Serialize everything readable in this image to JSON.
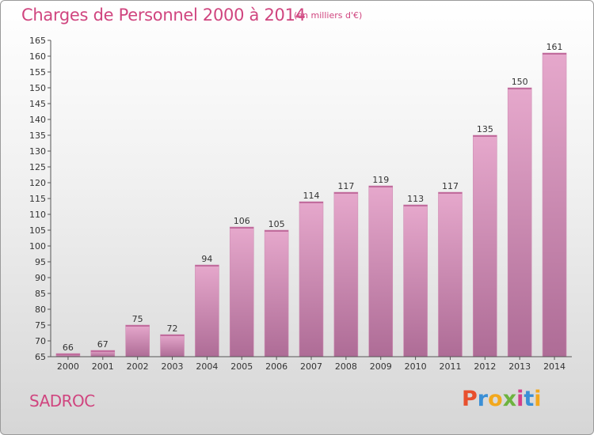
{
  "header": {
    "title": "Charges de Personnel 2000 à 2014",
    "subtitle": "(en milliers d'€)"
  },
  "footer": {
    "commune": "SADROC",
    "logo_text": "Proxiti"
  },
  "colors": {
    "title": "#d0457f",
    "bar_top": "#e6a8cc",
    "bar_bottom": "#ae6c96",
    "logo_letters": [
      "#e8502e",
      "#3a8fd6",
      "#f2a81d",
      "#6db33f",
      "#d33f8a",
      "#3a8fd6",
      "#f2a81d"
    ]
  },
  "chart_data": {
    "type": "bar",
    "title": "Charges de Personnel 2000 à 2014",
    "subtitle": "(en milliers d'€)",
    "categories": [
      "2000",
      "2001",
      "2002",
      "2003",
      "2004",
      "2005",
      "2006",
      "2007",
      "2008",
      "2009",
      "2010",
      "2011",
      "2012",
      "2013",
      "2014"
    ],
    "values": [
      66,
      67,
      75,
      72,
      94,
      106,
      105,
      114,
      117,
      119,
      113,
      117,
      135,
      150,
      161
    ],
    "ylim": [
      65,
      165
    ],
    "yticks": [
      65,
      70,
      75,
      80,
      85,
      90,
      95,
      100,
      105,
      110,
      115,
      120,
      125,
      130,
      135,
      140,
      145,
      150,
      155,
      160,
      165
    ],
    "grid": false,
    "data_labels": true
  }
}
